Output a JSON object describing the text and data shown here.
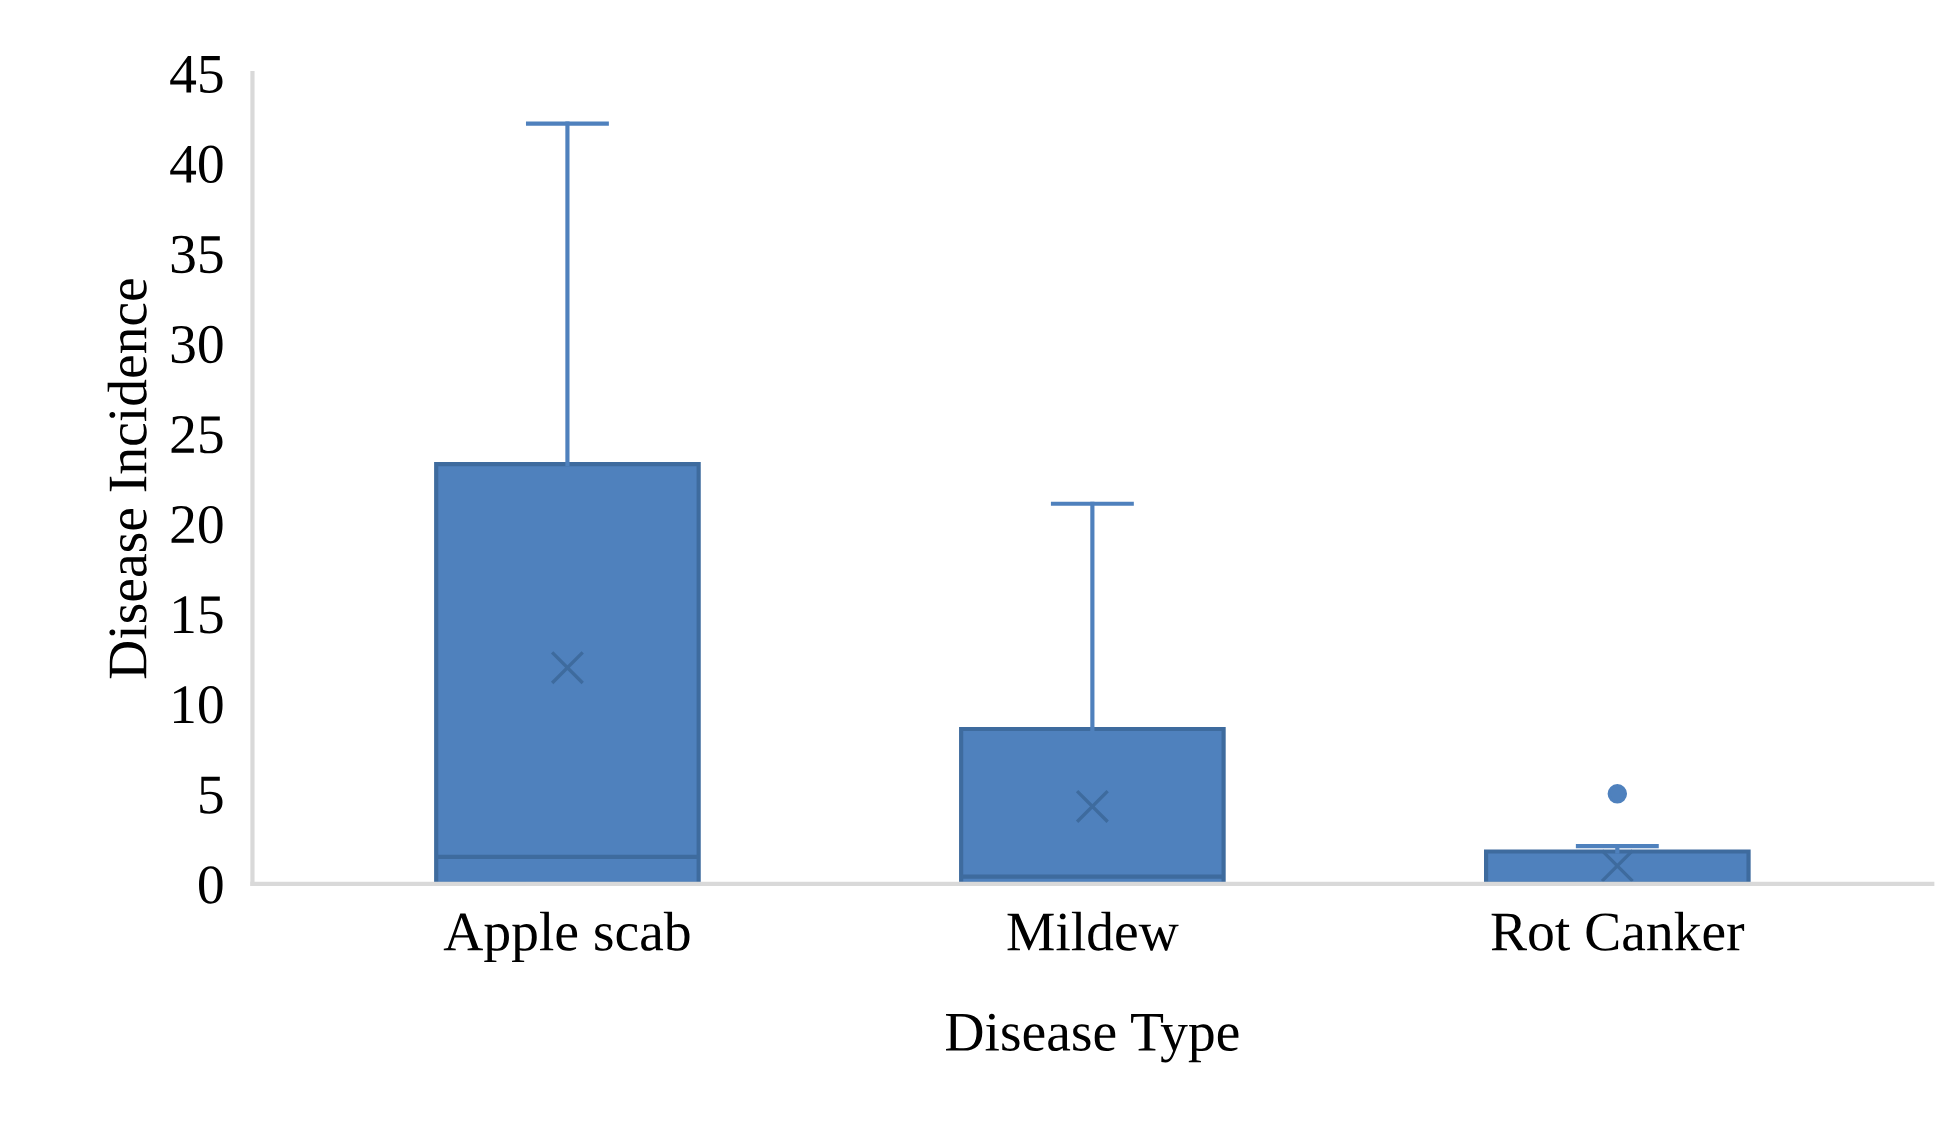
{
  "chart_data": {
    "type": "box",
    "xlabel": "Disease Type",
    "ylabel": "Disease Incidence",
    "categories": [
      "Apple scab",
      "Mildew",
      "Rot Canker"
    ],
    "color": "#4f81bd",
    "boxes": [
      {
        "q1": 0,
        "median": 1.5,
        "q3": 23.3,
        "high": 42.2,
        "mean": 12.0
      },
      {
        "q1": 0,
        "median": 0.4,
        "q3": 8.6,
        "high": 21.1,
        "mean": 4.3
      },
      {
        "q1": 0,
        "median": 0,
        "q3": 1.8,
        "high": 2.1,
        "mean": 1.0,
        "outliers": [
          5.0
        ]
      }
    ],
    "ylim": [
      0,
      45
    ],
    "yticks": [
      0,
      5,
      10,
      15,
      20,
      25,
      30,
      35,
      40,
      45
    ],
    "grid": false,
    "legend": false
  }
}
